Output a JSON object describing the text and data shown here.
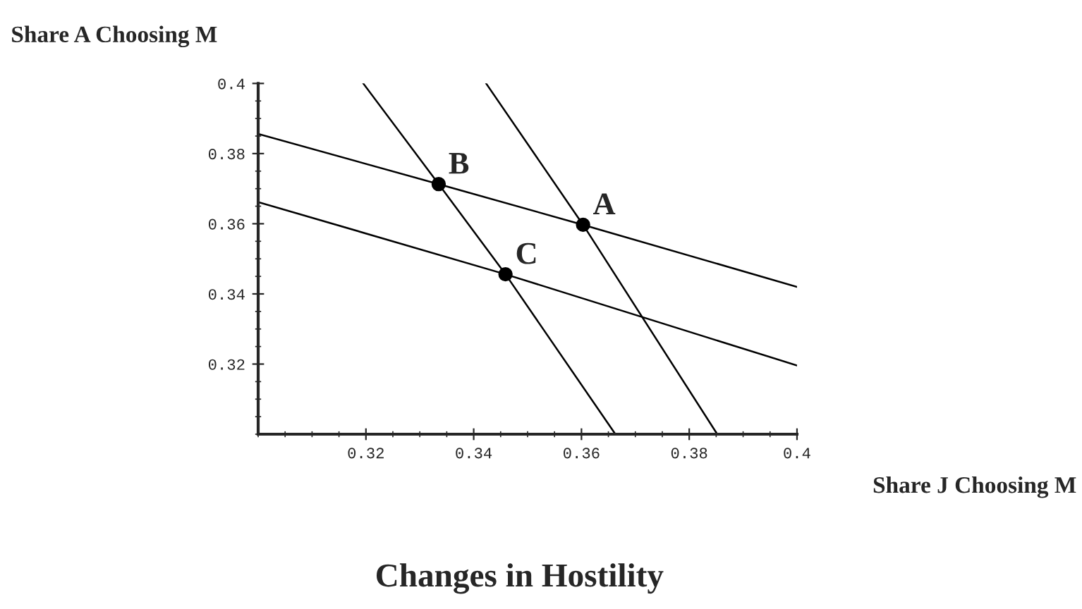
{
  "chart_data": {
    "type": "line",
    "title": "Changes in Hostility",
    "xlabel": "Share J Choosing M",
    "ylabel": "Share A Choosing M",
    "xlim": [
      0.3,
      0.4
    ],
    "ylim": [
      0.3,
      0.4
    ],
    "xticks": [
      0.32,
      0.34,
      0.36,
      0.38,
      0.4
    ],
    "yticks": [
      0.32,
      0.34,
      0.36,
      0.38,
      0.4
    ],
    "grid": false,
    "legend": false,
    "marker": "none",
    "line_style": "solid",
    "series": [
      {
        "color": "#000000",
        "x": [
          0.3,
          0.3335,
          0.3603,
          0.4
        ],
        "values": [
          0.3856,
          0.3713,
          0.3597,
          0.342
        ]
      },
      {
        "color": "#000000",
        "x": [
          0.3,
          0.3459,
          0.4
        ],
        "values": [
          0.3662,
          0.3456,
          0.3196
        ]
      },
      {
        "color": "#000000",
        "x": [
          0.3195,
          0.3335,
          0.3459,
          0.3663
        ],
        "values": [
          0.4,
          0.3713,
          0.3456,
          0.3
        ]
      },
      {
        "color": "#000000",
        "x": [
          0.3423,
          0.3603,
          0.3852
        ],
        "values": [
          0.4,
          0.3597,
          0.3
        ]
      },
      {
        "type": "scatter",
        "marker": "circle",
        "color": "#000000",
        "x": [
          0.3603,
          0.3335,
          0.3459
        ],
        "values": [
          0.3597,
          0.3713,
          0.3456
        ]
      }
    ],
    "annotations": [
      {
        "text": "A",
        "x": 0.3603,
        "y": 0.3597
      },
      {
        "text": "B",
        "x": 0.3335,
        "y": 0.3713
      },
      {
        "text": "C",
        "x": 0.3459,
        "y": 0.3456
      }
    ]
  }
}
